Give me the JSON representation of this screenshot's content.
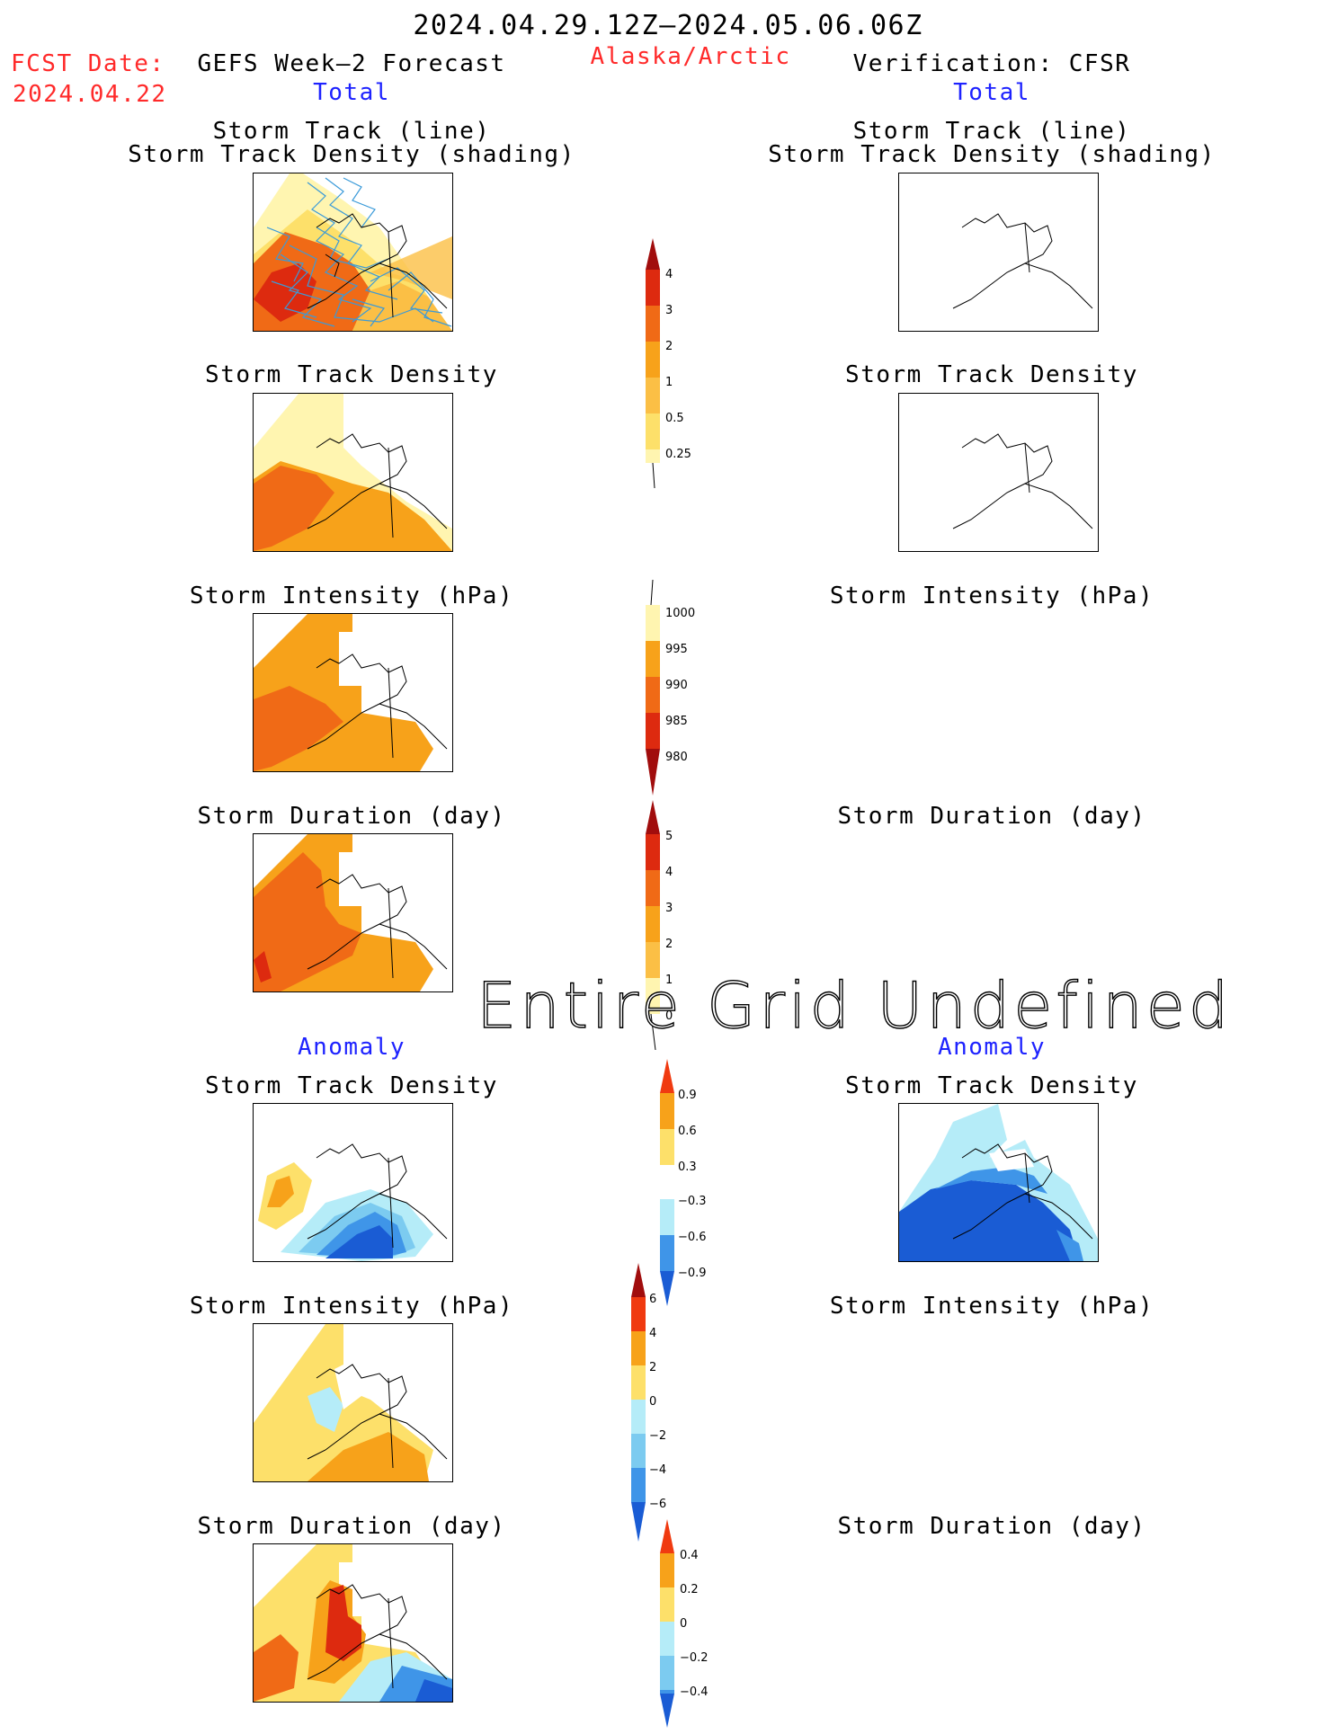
{
  "header": {
    "period": "2024.04.29.12Z–2024.05.06.06Z",
    "region": "Alaska/Arctic",
    "fcst_label": "FCST Date:",
    "fcst_date": "2024.04.22",
    "left_title": "GEFS Week–2 Forecast",
    "right_title": "Verification: CFSR",
    "left_sub": "Total",
    "right_sub": "Total"
  },
  "panels": {
    "track_line": "Storm Track (line)",
    "track_shading": "Storm Track Density (shading)",
    "density": "Storm Track Density",
    "intensity": "Storm Intensity (hPa)",
    "duration": "Storm Duration (day)",
    "anomaly": "Anomaly"
  },
  "overlay": {
    "undefined_text": "Entire Grid Undefined"
  },
  "colorbars": {
    "density": [
      "4",
      "3",
      "2",
      "1",
      "0.5",
      "0.25"
    ],
    "intensity": [
      "1000",
      "995",
      "990",
      "985",
      "980"
    ],
    "duration": [
      "5",
      "4",
      "3",
      "2",
      "1",
      "0"
    ],
    "density_anom": [
      "0.9",
      "0.6",
      "0.3",
      "−0.3",
      "−0.6",
      "−0.9"
    ],
    "intensity_anom": [
      "6",
      "4",
      "2",
      "0",
      "−2",
      "−4",
      "−6"
    ],
    "duration_anom": [
      "0.4",
      "0.2",
      "0",
      "−0.2",
      "−0.4"
    ]
  },
  "colors": {
    "title_red": "#ff2a2a",
    "label_blue": "#1d22ff",
    "yellow_light": "#fff5b0",
    "yellow": "#fde06a",
    "orange_light": "#fbbf45",
    "orange": "#f7a21a",
    "orange_dark": "#f06a16",
    "red": "#dd2a0f",
    "dark_red": "#a10d0d",
    "blue_light": "#b5ecf8",
    "blue_mid": "#7ccbf0",
    "blue": "#3f95e8",
    "blue_dark": "#1a5cd4",
    "track_line": "#3a9ad9"
  }
}
